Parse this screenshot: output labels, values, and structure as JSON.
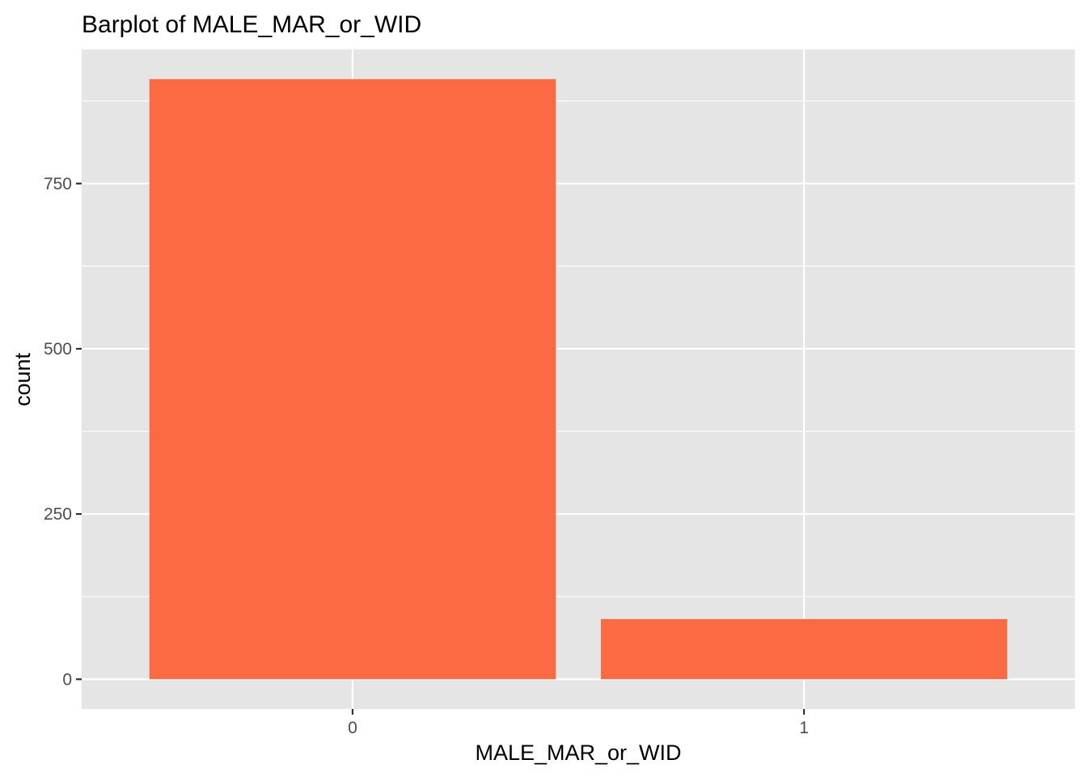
{
  "chart_data": {
    "type": "bar",
    "title": "Barplot of MALE_MAR_or_WID",
    "xlabel": "MALE_MAR_or_WID",
    "ylabel": "count",
    "categories": [
      "0",
      "1"
    ],
    "values": [
      908,
      91
    ],
    "ylim": [
      -45,
      953
    ],
    "yticks": [
      0,
      250,
      500,
      750
    ],
    "ytick_labels": [
      "0",
      "250",
      "500",
      "750"
    ],
    "grid": true,
    "legend": "none",
    "colors": {
      "bar": "#FC6A43",
      "panel_background": "#E5E5E5",
      "grid": "#FFFFFF",
      "tick_label": "#4D4D4D",
      "tick_mark": "#333333"
    }
  }
}
